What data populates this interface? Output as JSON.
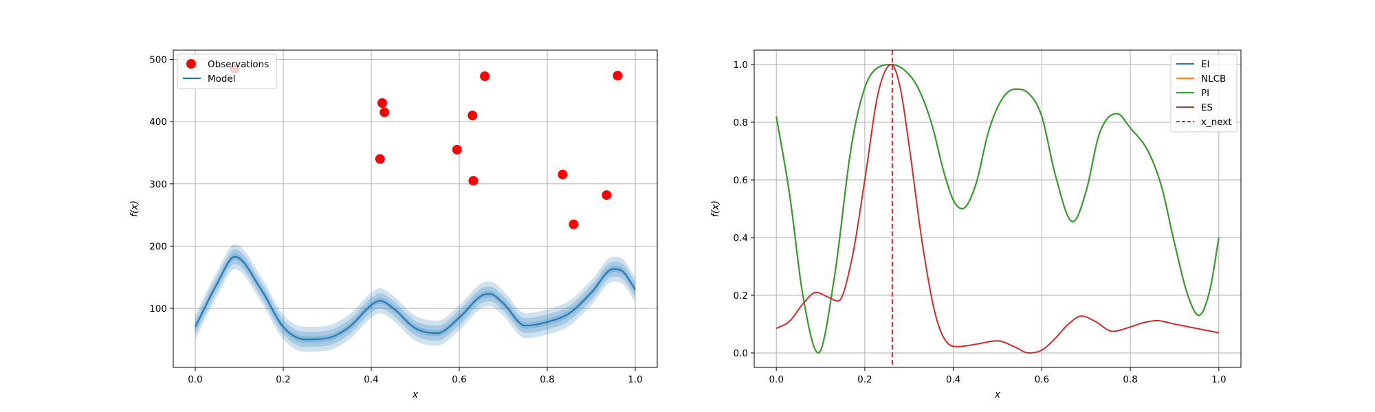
{
  "chart_data": [
    {
      "type": "scatter",
      "xlabel": "x",
      "ylabel": "f(x)",
      "xlim": [
        -0.05,
        1.05
      ],
      "ylim": [
        5,
        515
      ],
      "xticks": [
        0.0,
        0.2,
        0.4,
        0.6,
        0.8,
        1.0
      ],
      "xtick_labels": [
        "0.0",
        "0.2",
        "0.4",
        "0.6",
        "0.8",
        "1.0"
      ],
      "yticks": [
        100,
        200,
        300,
        400,
        500
      ],
      "ytick_labels": [
        "100",
        "200",
        "300",
        "400",
        "500"
      ],
      "grid": true,
      "legend": {
        "placement": "top-left",
        "entries": [
          "Observations",
          "Model"
        ]
      },
      "series": [
        {
          "name": "Observations",
          "type": "scatter",
          "color": "#ff0000",
          "x": [
            0.09,
            0.42,
            0.425,
            0.43,
            0.595,
            0.63,
            0.632,
            0.658,
            0.835,
            0.86,
            0.935,
            0.96
          ],
          "y": [
            485,
            340,
            430,
            415,
            355,
            410,
            305,
            473,
            315,
            235,
            282,
            474
          ]
        },
        {
          "name": "Model",
          "type": "line",
          "color": "#1f77b4",
          "band_color": "#1f77b4",
          "band_widths": [
            5,
            12,
            20
          ],
          "x": [
            0.0,
            0.05,
            0.09,
            0.15,
            0.2,
            0.25,
            0.3,
            0.35,
            0.4,
            0.42,
            0.45,
            0.5,
            0.55,
            0.6,
            0.65,
            0.67,
            0.7,
            0.75,
            0.8,
            0.85,
            0.9,
            0.95,
            0.97,
            1.0
          ],
          "y": [
            70,
            140,
            183,
            130,
            70,
            50,
            52,
            70,
            105,
            112,
            100,
            68,
            60,
            85,
            120,
            123,
            108,
            72,
            78,
            92,
            125,
            163,
            160,
            130
          ]
        }
      ]
    },
    {
      "type": "line",
      "xlabel": "x",
      "ylabel": "f(x)",
      "xlim": [
        -0.05,
        1.05
      ],
      "ylim": [
        -0.05,
        1.05
      ],
      "xticks": [
        0.0,
        0.2,
        0.4,
        0.6,
        0.8,
        1.0
      ],
      "xtick_labels": [
        "0.0",
        "0.2",
        "0.4",
        "0.6",
        "0.8",
        "1.0"
      ],
      "yticks": [
        0.0,
        0.2,
        0.4,
        0.6,
        0.8,
        1.0
      ],
      "ytick_labels": [
        "0.0",
        "0.2",
        "0.4",
        "0.6",
        "0.8",
        "1.0"
      ],
      "grid": true,
      "legend": {
        "placement": "top-right",
        "entries": [
          "EI",
          "NLCB",
          "PI",
          "ES",
          "x_next"
        ]
      },
      "series": [
        {
          "name": "EI",
          "color": "#1f77b4",
          "x": [
            0.0,
            0.03,
            0.06,
            0.095,
            0.13,
            0.17,
            0.2,
            0.23,
            0.26,
            0.29,
            0.32,
            0.35,
            0.38,
            0.4,
            0.42,
            0.45,
            0.48,
            0.51,
            0.54,
            0.57,
            0.6,
            0.63,
            0.67,
            0.7,
            0.73,
            0.77,
            0.8,
            0.84,
            0.87,
            0.9,
            0.93,
            0.955,
            0.98,
            1.0
          ],
          "y": [
            0.82,
            0.55,
            0.2,
            0.0,
            0.25,
            0.72,
            0.92,
            0.99,
            1.0,
            0.98,
            0.92,
            0.8,
            0.62,
            0.53,
            0.5,
            0.58,
            0.77,
            0.88,
            0.915,
            0.9,
            0.82,
            0.62,
            0.455,
            0.56,
            0.76,
            0.83,
            0.78,
            0.7,
            0.58,
            0.38,
            0.2,
            0.13,
            0.22,
            0.4
          ]
        },
        {
          "name": "NLCB",
          "color": "#ff7f0e",
          "x": [
            0.0,
            0.03,
            0.06,
            0.095,
            0.13,
            0.17,
            0.2,
            0.23,
            0.26,
            0.29,
            0.32,
            0.35,
            0.38,
            0.4,
            0.42,
            0.45,
            0.48,
            0.51,
            0.54,
            0.57,
            0.6,
            0.63,
            0.67,
            0.7,
            0.73,
            0.77,
            0.8,
            0.84,
            0.87,
            0.9,
            0.93,
            0.955,
            0.98,
            1.0
          ],
          "y": [
            0.82,
            0.55,
            0.2,
            0.0,
            0.25,
            0.72,
            0.92,
            0.99,
            1.0,
            0.98,
            0.92,
            0.8,
            0.62,
            0.53,
            0.5,
            0.58,
            0.77,
            0.88,
            0.915,
            0.9,
            0.82,
            0.62,
            0.455,
            0.56,
            0.76,
            0.83,
            0.78,
            0.7,
            0.58,
            0.38,
            0.2,
            0.13,
            0.22,
            0.4
          ]
        },
        {
          "name": "PI",
          "color": "#2ca02c",
          "x": [
            0.0,
            0.03,
            0.06,
            0.095,
            0.13,
            0.17,
            0.2,
            0.23,
            0.26,
            0.29,
            0.32,
            0.35,
            0.38,
            0.4,
            0.42,
            0.45,
            0.48,
            0.51,
            0.54,
            0.57,
            0.6,
            0.63,
            0.67,
            0.7,
            0.73,
            0.77,
            0.8,
            0.84,
            0.87,
            0.9,
            0.93,
            0.955,
            0.98,
            1.0
          ],
          "y": [
            0.82,
            0.55,
            0.2,
            0.0,
            0.25,
            0.72,
            0.92,
            0.99,
            1.0,
            0.98,
            0.92,
            0.8,
            0.62,
            0.53,
            0.5,
            0.58,
            0.77,
            0.88,
            0.915,
            0.9,
            0.82,
            0.62,
            0.455,
            0.56,
            0.76,
            0.83,
            0.78,
            0.7,
            0.58,
            0.38,
            0.2,
            0.13,
            0.22,
            0.4
          ]
        },
        {
          "name": "ES",
          "color": "#d62728",
          "x": [
            0.0,
            0.03,
            0.06,
            0.09,
            0.115,
            0.14,
            0.17,
            0.2,
            0.23,
            0.26,
            0.28,
            0.3,
            0.33,
            0.36,
            0.39,
            0.41,
            0.45,
            0.5,
            0.54,
            0.57,
            0.6,
            0.63,
            0.66,
            0.69,
            0.72,
            0.76,
            0.8,
            0.83,
            0.86,
            0.9,
            0.95,
            1.0
          ],
          "y": [
            0.085,
            0.11,
            0.17,
            0.21,
            0.195,
            0.18,
            0.32,
            0.6,
            0.9,
            1.0,
            0.92,
            0.72,
            0.38,
            0.13,
            0.03,
            0.022,
            0.03,
            0.042,
            0.02,
            0.0,
            0.01,
            0.05,
            0.1,
            0.128,
            0.11,
            0.075,
            0.09,
            0.105,
            0.112,
            0.1,
            0.085,
            0.07
          ]
        },
        {
          "name": "x_next",
          "type": "vline",
          "color": "#d62728",
          "style": "dashed",
          "x": 0.262
        }
      ]
    }
  ]
}
